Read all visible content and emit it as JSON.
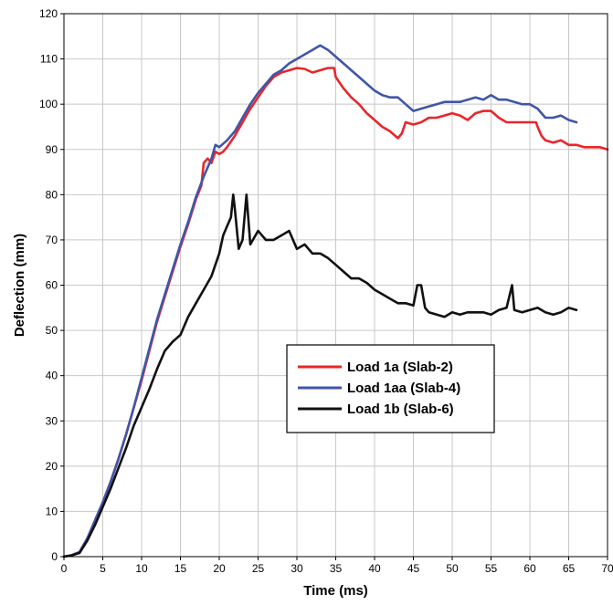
{
  "chart_data": {
    "type": "line",
    "title": "",
    "xlabel": "Time (ms)",
    "ylabel": "Deflection (mm)",
    "xlim": [
      0,
      70
    ],
    "ylim": [
      0,
      120
    ],
    "x_ticks": [
      0,
      5,
      10,
      15,
      20,
      25,
      30,
      35,
      40,
      45,
      50,
      55,
      60,
      65,
      70
    ],
    "y_ticks": [
      0,
      10,
      20,
      30,
      40,
      50,
      60,
      70,
      80,
      90,
      100,
      110,
      120
    ],
    "grid": true,
    "legend_position": "center-right",
    "series": [
      {
        "name": "Load 1a (Slab-2)",
        "color": "#e8262a",
        "points": [
          [
            0,
            0
          ],
          [
            1,
            0.3
          ],
          [
            2,
            1
          ],
          [
            3,
            4
          ],
          [
            4,
            8
          ],
          [
            5,
            12
          ],
          [
            6,
            16.5
          ],
          [
            7,
            21.5
          ],
          [
            8,
            27
          ],
          [
            9,
            33
          ],
          [
            10,
            39
          ],
          [
            11,
            45.5
          ],
          [
            12,
            52
          ],
          [
            13,
            57.5
          ],
          [
            14,
            63
          ],
          [
            15,
            68.5
          ],
          [
            16,
            73.5
          ],
          [
            17,
            79
          ],
          [
            17.7,
            82
          ],
          [
            18,
            87
          ],
          [
            18.5,
            88
          ],
          [
            19,
            87
          ],
          [
            19.5,
            89.5
          ],
          [
            20,
            89
          ],
          [
            20.5,
            89.5
          ],
          [
            21,
            90.5
          ],
          [
            22,
            93
          ],
          [
            23,
            96
          ],
          [
            24,
            99
          ],
          [
            25,
            101.5
          ],
          [
            26,
            104
          ],
          [
            27,
            106
          ],
          [
            28,
            107
          ],
          [
            29,
            107.5
          ],
          [
            30,
            108
          ],
          [
            31,
            107.8
          ],
          [
            32,
            107
          ],
          [
            33,
            107.5
          ],
          [
            34,
            108
          ],
          [
            34.8,
            108
          ],
          [
            35,
            106
          ],
          [
            36,
            103.5
          ],
          [
            37,
            101.5
          ],
          [
            38,
            100
          ],
          [
            39,
            98
          ],
          [
            40,
            96.5
          ],
          [
            41,
            95
          ],
          [
            42,
            94
          ],
          [
            43,
            92.5
          ],
          [
            43.5,
            93.5
          ],
          [
            44,
            96
          ],
          [
            45,
            95.5
          ],
          [
            46,
            96
          ],
          [
            47,
            97
          ],
          [
            48,
            97
          ],
          [
            49,
            97.5
          ],
          [
            50,
            98
          ],
          [
            51,
            97.5
          ],
          [
            52,
            96.5
          ],
          [
            53,
            98
          ],
          [
            54,
            98.5
          ],
          [
            55,
            98.5
          ],
          [
            56,
            97
          ],
          [
            57,
            96
          ],
          [
            58,
            96
          ],
          [
            59,
            96
          ],
          [
            60,
            96
          ],
          [
            60.8,
            96
          ],
          [
            61,
            95
          ],
          [
            61.5,
            93
          ],
          [
            62,
            92
          ],
          [
            63,
            91.5
          ],
          [
            64,
            92
          ],
          [
            65,
            91
          ],
          [
            66,
            91
          ],
          [
            67,
            90.5
          ],
          [
            68,
            90.5
          ],
          [
            69,
            90.5
          ],
          [
            70,
            90
          ]
        ]
      },
      {
        "name": "Load 1aa (Slab-4)",
        "color": "#3f56a8",
        "points": [
          [
            0,
            0
          ],
          [
            1,
            0.3
          ],
          [
            2,
            1
          ],
          [
            3,
            4
          ],
          [
            4,
            8
          ],
          [
            5,
            12
          ],
          [
            6,
            16.5
          ],
          [
            7,
            21.5
          ],
          [
            8,
            27
          ],
          [
            9,
            33
          ],
          [
            10,
            39.5
          ],
          [
            11,
            46
          ],
          [
            12,
            52.5
          ],
          [
            13,
            58
          ],
          [
            14,
            63.5
          ],
          [
            15,
            69
          ],
          [
            16,
            74
          ],
          [
            17,
            79.5
          ],
          [
            18,
            84
          ],
          [
            19,
            88
          ],
          [
            19.5,
            91
          ],
          [
            20,
            90.5
          ],
          [
            21,
            92
          ],
          [
            22,
            94
          ],
          [
            23,
            97
          ],
          [
            24,
            100
          ],
          [
            25,
            102.5
          ],
          [
            26,
            104.5
          ],
          [
            27,
            106.5
          ],
          [
            28,
            107.5
          ],
          [
            29,
            109
          ],
          [
            30,
            110
          ],
          [
            31,
            111
          ],
          [
            32,
            112
          ],
          [
            33,
            113
          ],
          [
            34,
            112
          ],
          [
            35,
            110.5
          ],
          [
            36,
            109
          ],
          [
            37,
            107.5
          ],
          [
            38,
            106
          ],
          [
            39,
            104.5
          ],
          [
            40,
            103
          ],
          [
            41,
            102
          ],
          [
            42,
            101.5
          ],
          [
            43,
            101.5
          ],
          [
            44,
            100
          ],
          [
            45,
            98.5
          ],
          [
            46,
            99
          ],
          [
            47,
            99.5
          ],
          [
            48,
            100
          ],
          [
            49,
            100.5
          ],
          [
            50,
            100.5
          ],
          [
            51,
            100.5
          ],
          [
            52,
            101
          ],
          [
            53,
            101.5
          ],
          [
            54,
            101
          ],
          [
            55,
            102
          ],
          [
            56,
            101
          ],
          [
            57,
            101
          ],
          [
            58,
            100.5
          ],
          [
            59,
            100
          ],
          [
            60,
            100
          ],
          [
            61,
            99
          ],
          [
            62,
            97
          ],
          [
            63,
            97
          ],
          [
            64,
            97.5
          ],
          [
            65,
            96.5
          ],
          [
            66,
            96
          ]
        ]
      },
      {
        "name": "Load 1b (Slab-6)",
        "color": "#111111",
        "points": [
          [
            0,
            0
          ],
          [
            1,
            0.3
          ],
          [
            2,
            0.8
          ],
          [
            3,
            3.5
          ],
          [
            4,
            7
          ],
          [
            5,
            11
          ],
          [
            6,
            15
          ],
          [
            7,
            19.5
          ],
          [
            8,
            24
          ],
          [
            9,
            29
          ],
          [
            10,
            33
          ],
          [
            11,
            37
          ],
          [
            12,
            41.5
          ],
          [
            13,
            45.5
          ],
          [
            14,
            47.5
          ],
          [
            15,
            49
          ],
          [
            16,
            53
          ],
          [
            17,
            56
          ],
          [
            18,
            59
          ],
          [
            19,
            62
          ],
          [
            20,
            67
          ],
          [
            20.5,
            71
          ],
          [
            21,
            73
          ],
          [
            21.5,
            75
          ],
          [
            21.8,
            80
          ],
          [
            22,
            77
          ],
          [
            22.5,
            68
          ],
          [
            23,
            70
          ],
          [
            23.5,
            80
          ],
          [
            24,
            69
          ],
          [
            25,
            72
          ],
          [
            26,
            70
          ],
          [
            27,
            70
          ],
          [
            28,
            71
          ],
          [
            29,
            72
          ],
          [
            30,
            68
          ],
          [
            31,
            69
          ],
          [
            32,
            67
          ],
          [
            33,
            67
          ],
          [
            34,
            66
          ],
          [
            35,
            64.5
          ],
          [
            36,
            63
          ],
          [
            37,
            61.5
          ],
          [
            38,
            61.5
          ],
          [
            39,
            60.5
          ],
          [
            40,
            59
          ],
          [
            41,
            58
          ],
          [
            42,
            57
          ],
          [
            43,
            56
          ],
          [
            44,
            56
          ],
          [
            45,
            55.5
          ],
          [
            45.5,
            60
          ],
          [
            46,
            60
          ],
          [
            46.5,
            55
          ],
          [
            47,
            54
          ],
          [
            48,
            53.5
          ],
          [
            49,
            53
          ],
          [
            50,
            54
          ],
          [
            51,
            53.5
          ],
          [
            52,
            54
          ],
          [
            53,
            54
          ],
          [
            54,
            54
          ],
          [
            55,
            53.5
          ],
          [
            56,
            54.5
          ],
          [
            57,
            55
          ],
          [
            57.7,
            60
          ],
          [
            58,
            54.5
          ],
          [
            59,
            54
          ],
          [
            60,
            54.5
          ],
          [
            61,
            55
          ],
          [
            62,
            54
          ],
          [
            63,
            53.5
          ],
          [
            64,
            54
          ],
          [
            65,
            55
          ],
          [
            66,
            54.5
          ]
        ]
      }
    ]
  }
}
